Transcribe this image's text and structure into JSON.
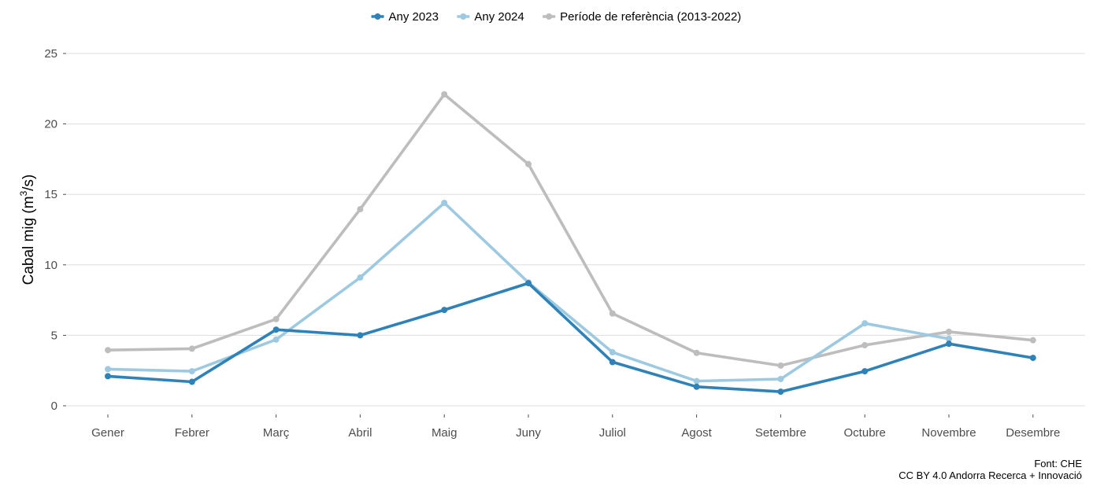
{
  "chart_data": {
    "type": "line",
    "categories": [
      "Gener",
      "Febrer",
      "Març",
      "Abril",
      "Maig",
      "Juny",
      "Juliol",
      "Agost",
      "Setembre",
      "Octubre",
      "Novembre",
      "Desembre"
    ],
    "series": [
      {
        "name": "Any 2023",
        "color": "#2e82b8",
        "values": [
          2.1,
          1.7,
          5.4,
          5.0,
          6.8,
          8.7,
          3.1,
          1.35,
          1.0,
          2.45,
          4.4,
          3.4
        ]
      },
      {
        "name": "Any 2024",
        "color": "#9ecae1",
        "values": [
          2.6,
          2.45,
          4.7,
          9.1,
          14.4,
          8.75,
          3.8,
          1.75,
          1.9,
          5.85,
          4.75,
          null
        ]
      },
      {
        "name": "Període de referència (2013-2022)",
        "color": "#bdbdbd",
        "values": [
          3.95,
          4.05,
          6.15,
          13.95,
          22.1,
          17.15,
          6.55,
          3.75,
          2.85,
          4.3,
          5.25,
          4.65
        ]
      }
    ],
    "ylabel": "Cabal mig (m³/s)",
    "ylabel_main": "Cabal mig (m",
    "ylabel_sup": "3",
    "ylabel_tail": "/s)",
    "ylim": [
      0,
      25
    ],
    "yticks": [
      0,
      5,
      10,
      15,
      20,
      25
    ],
    "ytick_labels": [
      "0",
      "5",
      "10",
      "15",
      "20",
      "25"
    ],
    "grid": "horizontal",
    "legend_position": "top"
  },
  "caption": {
    "source": "Font: CHE",
    "license": "CC BY 4.0 Andorra Recerca + Innovació"
  }
}
